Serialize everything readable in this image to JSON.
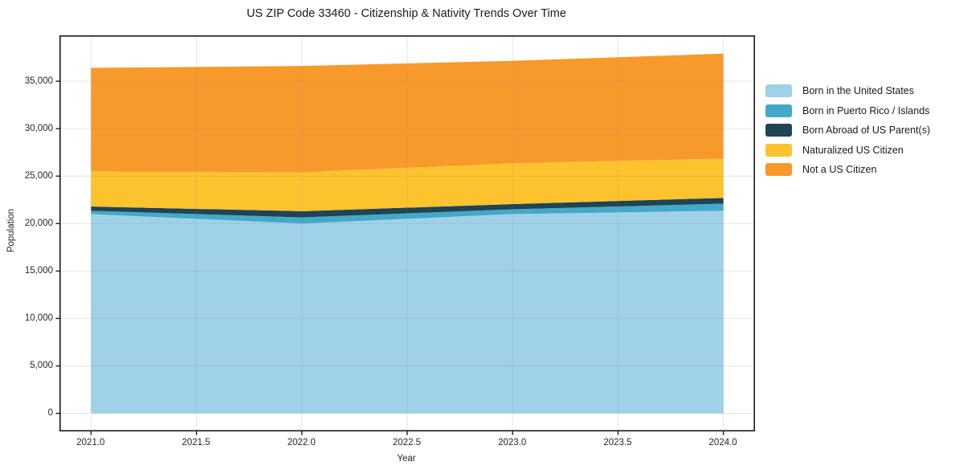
{
  "title": "US ZIP Code 33460 - Citizenship & Nativity Trends Over Time",
  "chart_data": {
    "type": "area",
    "stacked": true,
    "title": "US ZIP Code 33460 - Citizenship & Nativity Trends Over Time",
    "xlabel": "Year",
    "ylabel": "Population",
    "x": [
      2021,
      2022,
      2023,
      2024
    ],
    "series": [
      {
        "name": "Born in the United States",
        "color": "#9fd1e8",
        "values": [
          21000,
          20000,
          21000,
          21350
        ]
      },
      {
        "name": "Born in Puerto Rico / Islands",
        "color": "#44a9c6",
        "values": [
          350,
          650,
          500,
          750
        ]
      },
      {
        "name": "Born Abroad of US Parent(s)",
        "color": "#1f4456",
        "values": [
          450,
          650,
          550,
          600
        ]
      },
      {
        "name": "Naturalized US Citizen",
        "color": "#fdc32e",
        "values": [
          3700,
          4100,
          4300,
          4150
        ]
      },
      {
        "name": "Not a US Citizen",
        "color": "#f8992b",
        "values": [
          10900,
          11200,
          10800,
          11050
        ]
      }
    ],
    "totals": [
      36400,
      36600,
      37150,
      37900
    ],
    "x_ticks": [
      "2021.0",
      "2021.5",
      "2022.0",
      "2022.5",
      "2023.0",
      "2023.5",
      "2024.0"
    ],
    "x_tick_values": [
      2021,
      2021.5,
      2022,
      2022.5,
      2023,
      2023.5,
      2024
    ],
    "y_ticks": [
      "0",
      "5,000",
      "10,000",
      "15,000",
      "20,000",
      "25,000",
      "30,000",
      "35,000"
    ],
    "y_tick_values": [
      0,
      5000,
      10000,
      15000,
      20000,
      25000,
      30000,
      35000
    ],
    "xlim": [
      2020.85,
      2024.15
    ],
    "ylim": [
      -1900,
      39830
    ],
    "grid": true,
    "legend_position": "center right",
    "frame_color": "#1a1a1a",
    "grid_color": "rgba(140,140,140,0.22)"
  }
}
